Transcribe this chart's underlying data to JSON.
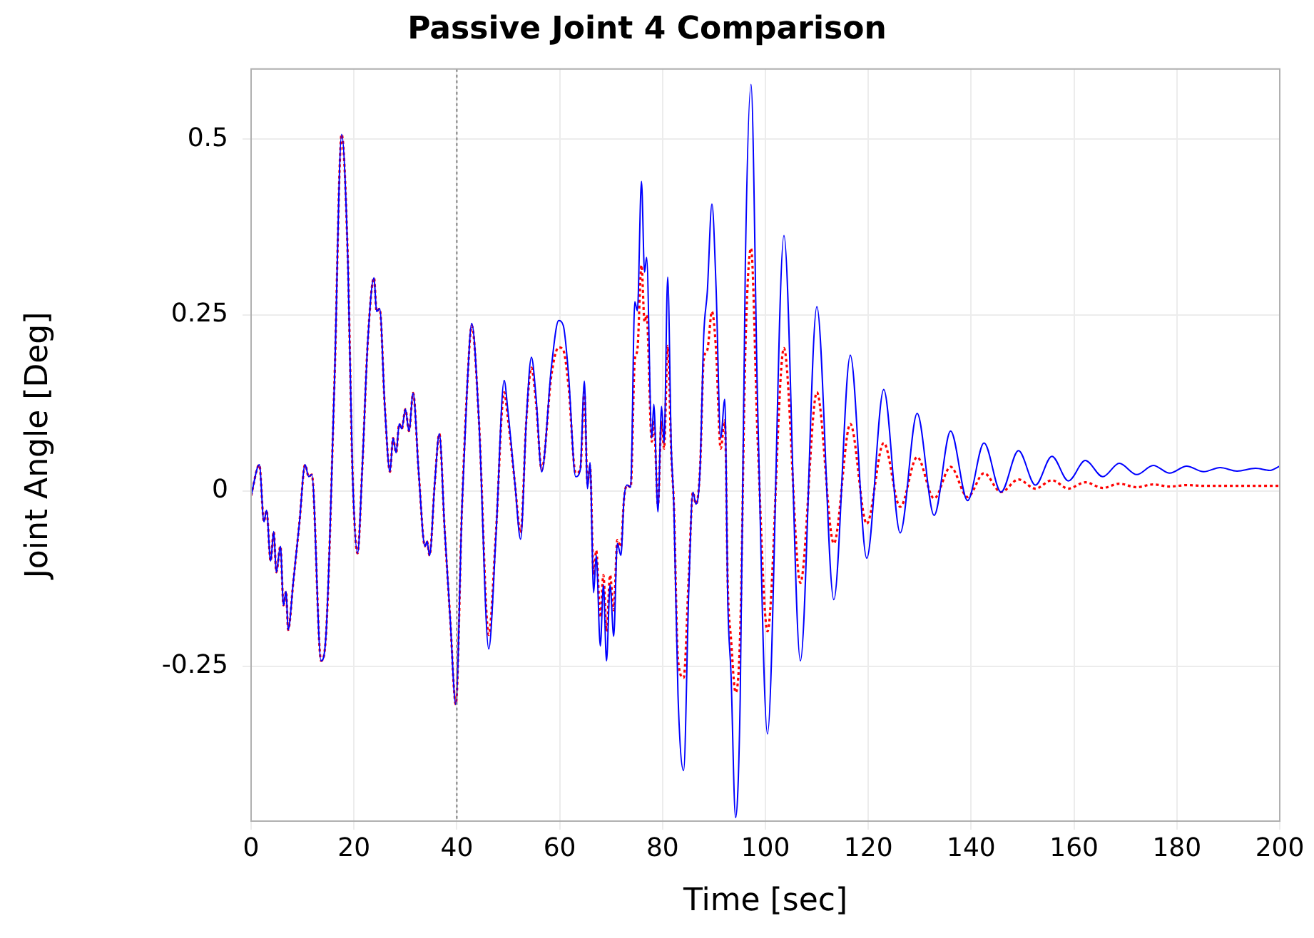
{
  "chart_data": {
    "type": "line",
    "title": "Passive Joint 4 Comparison",
    "xlabel": "Time [sec]",
    "ylabel": "Joint Angle [Deg]",
    "x": [
      0,
      1.6,
      2.5,
      3.0,
      3.8,
      4.4,
      4.9,
      5.7,
      6.3,
      6.8,
      7.2,
      8.2,
      9.4,
      10.5,
      11.2,
      11.8,
      13.6,
      14.5,
      16.2,
      17.6,
      18.8,
      19.7,
      20.7,
      21.6,
      22.7,
      23.9,
      24.4,
      25.0,
      26.0,
      27.0,
      27.6,
      28.2,
      28.8,
      29.3,
      30.0,
      30.7,
      31.5,
      32.6,
      33.8,
      34.2,
      34.7,
      35.7,
      36.6,
      37.6,
      38.7,
      39.8,
      41.0,
      42.0,
      42.9,
      44.3,
      46.2,
      47.6,
      49.2,
      49.9,
      51.3,
      52.4,
      53.5,
      54.5,
      55.4,
      56.5,
      58.4,
      59.8,
      60.7,
      61.7,
      63.1,
      64.0,
      64.8,
      65.4,
      65.9,
      66.6,
      67.1,
      67.9,
      68.5,
      69.1,
      69.8,
      70.5,
      71.2,
      71.9,
      72.5,
      73.1,
      73.8,
      74.6,
      75.1,
      75.9,
      76.5,
      76.9,
      77.9,
      78.3,
      79.1,
      79.8,
      80.3,
      81.0,
      81.7,
      82.2,
      83.0,
      84.1,
      85.1,
      85.9,
      86.5,
      87.3,
      88.0,
      88.7,
      89.6,
      90.4,
      91.3,
      92.1,
      92.7,
      93.3,
      94.2,
      95.1,
      96.1,
      97.2,
      98.5,
      100.4,
      103.6,
      106.8,
      110.0,
      113.3,
      116.5,
      119.7,
      123.0,
      126.2,
      129.5,
      132.8,
      136.0,
      139.3,
      142.5,
      145.8,
      149.2,
      152.5,
      155.7,
      158.9,
      162.2,
      165.6,
      168.8,
      172.2,
      175.4,
      178.6,
      181.9,
      185.2,
      188.4,
      191.7,
      195.3,
      198.1,
      200
    ],
    "series": [
      {
        "color": "#0000ff",
        "line_style": "solid",
        "values": [
          -0.007,
          0.037,
          -0.044,
          -0.028,
          -0.1,
          -0.058,
          -0.116,
          -0.079,
          -0.163,
          -0.143,
          -0.198,
          -0.13,
          -0.045,
          0.037,
          0.02,
          0.023,
          -0.242,
          -0.212,
          0.153,
          0.507,
          0.331,
          0.03,
          -0.089,
          0.03,
          0.214,
          0.303,
          0.255,
          0.259,
          0.119,
          0.027,
          0.075,
          0.054,
          0.095,
          0.088,
          0.116,
          0.085,
          0.139,
          0.024,
          -0.079,
          -0.072,
          -0.092,
          0.01,
          0.081,
          -0.051,
          -0.181,
          -0.304,
          -0.024,
          0.146,
          0.238,
          0.099,
          -0.225,
          -0.065,
          0.157,
          0.116,
          0.01,
          -0.069,
          0.099,
          0.19,
          0.133,
          0.027,
          0.177,
          0.242,
          0.235,
          0.167,
          0.02,
          0.03,
          0.156,
          0.003,
          0.04,
          -0.145,
          -0.092,
          -0.221,
          -0.134,
          -0.242,
          -0.134,
          -0.207,
          -0.075,
          -0.092,
          -0.012,
          0.008,
          0.005,
          0.269,
          0.256,
          0.44,
          0.311,
          0.332,
          0.075,
          0.123,
          -0.03,
          0.12,
          0.068,
          0.304,
          0.06,
          -0.022,
          -0.29,
          -0.398,
          -0.141,
          -0.002,
          -0.019,
          0.033,
          0.22,
          0.283,
          0.408,
          0.29,
          0.075,
          0.13,
          -0.162,
          -0.259,
          -0.465,
          -0.294,
          0.325,
          0.578,
          0.116,
          -0.346,
          0.363,
          -0.242,
          0.262,
          -0.155,
          0.193,
          -0.096,
          0.144,
          -0.06,
          0.11,
          -0.035,
          0.085,
          -0.014,
          0.068,
          -0.002,
          0.057,
          0.008,
          0.049,
          0.014,
          0.043,
          0.02,
          0.039,
          0.023,
          0.036,
          0.025,
          0.035,
          0.027,
          0.033,
          0.028,
          0.032,
          0.029,
          0.035
        ]
      },
      {
        "color": "#ff0000",
        "line_style": "dotted",
        "values": [
          -0.007,
          0.037,
          -0.044,
          -0.028,
          -0.1,
          -0.058,
          -0.116,
          -0.079,
          -0.163,
          -0.143,
          -0.198,
          -0.13,
          -0.045,
          0.037,
          0.02,
          0.023,
          -0.242,
          -0.212,
          0.153,
          0.507,
          0.331,
          0.03,
          -0.089,
          0.03,
          0.214,
          0.303,
          0.255,
          0.259,
          0.119,
          0.027,
          0.075,
          0.054,
          0.095,
          0.088,
          0.116,
          0.085,
          0.139,
          0.024,
          -0.079,
          -0.072,
          -0.092,
          0.01,
          0.081,
          -0.051,
          -0.181,
          -0.304,
          -0.024,
          0.146,
          0.235,
          0.099,
          -0.205,
          -0.06,
          0.14,
          0.105,
          0.01,
          -0.06,
          0.099,
          0.175,
          0.125,
          0.03,
          0.165,
          0.204,
          0.2,
          0.15,
          0.025,
          0.03,
          0.14,
          0.01,
          0.035,
          -0.12,
          -0.085,
          -0.18,
          -0.12,
          -0.2,
          -0.12,
          -0.17,
          -0.07,
          -0.08,
          -0.012,
          0.008,
          0.005,
          0.186,
          0.2,
          0.321,
          0.24,
          0.25,
          0.07,
          0.1,
          -0.02,
          0.1,
          0.06,
          0.206,
          0.05,
          -0.02,
          -0.24,
          -0.266,
          -0.12,
          -0.002,
          -0.019,
          0.033,
          0.186,
          0.2,
          0.255,
          0.2,
          0.06,
          0.1,
          -0.14,
          -0.21,
          -0.287,
          -0.2,
          0.2,
          0.345,
          0.07,
          -0.2,
          0.203,
          -0.131,
          0.14,
          -0.075,
          0.095,
          -0.047,
          0.068,
          -0.023,
          0.048,
          -0.011,
          0.034,
          -0.009,
          0.025,
          -0.002,
          0.016,
          0.003,
          0.015,
          0.003,
          0.012,
          0.004,
          0.01,
          0.005,
          0.009,
          0.006,
          0.008,
          0.007,
          0.007,
          0.007,
          0.007,
          0.007,
          0.007
        ]
      }
    ],
    "xlim": [
      0,
      200
    ],
    "xticks": [
      0,
      20,
      40,
      60,
      80,
      100,
      120,
      140,
      160,
      180,
      200
    ],
    "ylim": [
      -0.47,
      0.6
    ],
    "yticks": [
      -0.25,
      0,
      0.25,
      0.5
    ],
    "ref_lines": [
      {
        "axis": "x",
        "value": 40,
        "color": "#808080",
        "line_style": "dotted"
      }
    ],
    "grid": true,
    "legend": false
  }
}
